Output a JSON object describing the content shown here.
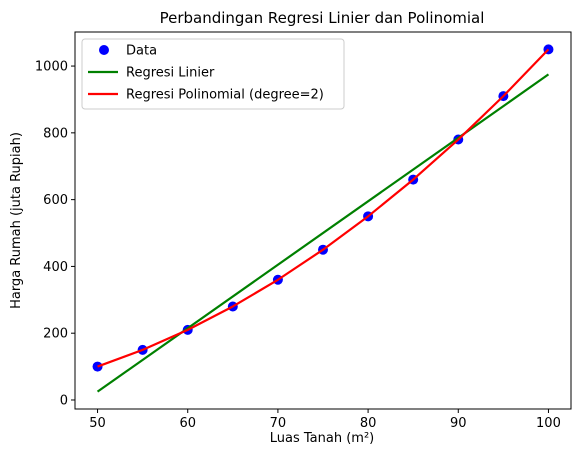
{
  "chart_data": {
    "type": "scatter",
    "title": "Perbandingan Regresi Linier dan Polinomial",
    "xlabel": "Luas Tanah (m²)",
    "ylabel": "Harga Rumah (juta Rupiah)",
    "xlim": [
      47.5,
      102.5
    ],
    "ylim": [
      -27,
      1102
    ],
    "xticks": [
      50,
      60,
      70,
      80,
      90,
      100
    ],
    "yticks": [
      0,
      200,
      400,
      600,
      800,
      1000
    ],
    "grid": false,
    "legend_position": "top-left",
    "series": [
      {
        "name": "Data",
        "kind": "scatter",
        "color": "#0000ff",
        "x": [
          50,
          55,
          60,
          65,
          70,
          75,
          80,
          85,
          90,
          95,
          100
        ],
        "y": [
          100,
          150,
          210,
          280,
          360,
          450,
          550,
          660,
          780,
          910,
          1050
        ]
      },
      {
        "name": "Regresi Linier",
        "kind": "line",
        "color": "#008000",
        "x": [
          50,
          100
        ],
        "y": [
          25,
          975
        ]
      },
      {
        "name": "Regresi Polinomial (degree=2)",
        "kind": "line",
        "color": "#ff0000",
        "x": [
          50,
          55,
          60,
          65,
          70,
          75,
          80,
          85,
          90,
          95,
          100
        ],
        "y": [
          100,
          150,
          210,
          280,
          360,
          450,
          550,
          660,
          780,
          910,
          1050
        ]
      }
    ]
  }
}
